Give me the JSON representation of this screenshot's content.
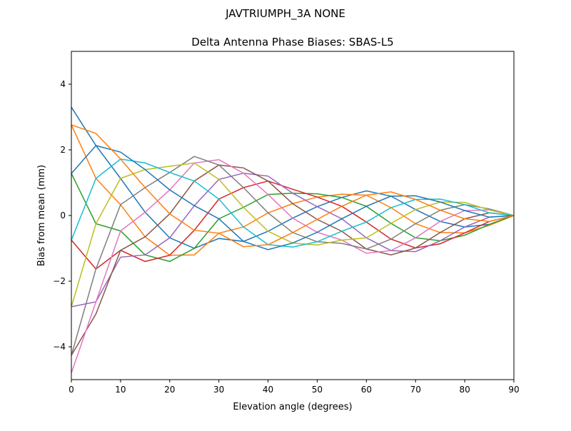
{
  "suptitle": "JAVTRIUMPH_3A   NONE",
  "chart_data": {
    "type": "line",
    "title": "Delta Antenna Phase Biases: SBAS-L5",
    "xlabel": "Elevation angle (degrees)",
    "ylabel": "Bias from mean (mm)",
    "xlim": [
      0,
      90
    ],
    "ylim": [
      -5,
      5
    ],
    "xticks": [
      "0",
      "10",
      "20",
      "30",
      "40",
      "50",
      "60",
      "70",
      "80",
      "90"
    ],
    "yticks": [
      "−4",
      "−2",
      "0",
      "2",
      "4"
    ],
    "grid": false,
    "legend": "none",
    "x": [
      0,
      5,
      10,
      15,
      20,
      25,
      30,
      35,
      40,
      45,
      50,
      55,
      60,
      65,
      70,
      75,
      80,
      85,
      90
    ],
    "colors": [
      "#1f77b4",
      "#ff7f0e",
      "#2ca02c",
      "#d62728",
      "#9467bd",
      "#8c564b",
      "#e377c2",
      "#7f7f7f",
      "#bcbd22",
      "#17becf"
    ],
    "series": [
      {
        "values": [
          3.3,
          2.13,
          1.13,
          0.1,
          -0.68,
          -1.0,
          -0.7,
          -0.79,
          -0.48,
          -0.08,
          0.27,
          0.55,
          0.75,
          0.59,
          0.18,
          -0.18,
          -0.35,
          -0.27,
          0
        ]
      },
      {
        "values": [
          2.76,
          1.13,
          0.33,
          -0.65,
          -1.21,
          -1.2,
          -0.54,
          -0.35,
          0.08,
          0.36,
          0.56,
          0.65,
          0.62,
          0.24,
          -0.25,
          -0.52,
          -0.53,
          -0.3,
          0
        ]
      },
      {
        "values": [
          1.28,
          -0.25,
          -0.47,
          -1.2,
          -1.4,
          -1.0,
          -0.1,
          0.25,
          0.64,
          0.68,
          0.66,
          0.55,
          0.28,
          -0.24,
          -0.68,
          -0.77,
          -0.6,
          -0.27,
          0
        ]
      },
      {
        "values": [
          -0.75,
          -1.63,
          -1.06,
          -1.4,
          -1.21,
          -0.45,
          0.5,
          0.85,
          1.05,
          0.8,
          0.56,
          0.28,
          -0.2,
          -0.72,
          -0.99,
          -0.86,
          -0.53,
          -0.18,
          0
        ]
      },
      {
        "values": [
          -2.78,
          -2.63,
          -1.27,
          -1.2,
          -0.68,
          0.3,
          1.1,
          1.29,
          1.2,
          0.68,
          0.27,
          -0.1,
          -0.68,
          -1.07,
          -1.1,
          -0.77,
          -0.35,
          -0.05,
          0
        ]
      },
      {
        "values": [
          -4.26,
          -3.0,
          -1.06,
          -0.65,
          0.05,
          1.05,
          1.54,
          1.45,
          1.05,
          0.36,
          -0.12,
          -0.48,
          -1.02,
          -1.2,
          -0.99,
          -0.52,
          -0.1,
          0.08,
          0
        ]
      },
      {
        "values": [
          -4.8,
          -2.63,
          -0.47,
          0.1,
          0.78,
          1.6,
          1.7,
          1.29,
          0.64,
          -0.08,
          -0.51,
          -0.75,
          -1.15,
          -1.07,
          -0.68,
          -0.18,
          0.15,
          0.17,
          0
        ]
      },
      {
        "values": [
          -4.26,
          -1.63,
          0.33,
          0.85,
          1.31,
          1.8,
          1.54,
          0.85,
          0.08,
          -0.52,
          -0.8,
          -0.85,
          -1.02,
          -0.72,
          -0.25,
          0.16,
          0.33,
          0.2,
          0
        ]
      },
      {
        "values": [
          -2.78,
          -0.25,
          1.13,
          1.4,
          1.5,
          1.6,
          1.1,
          0.25,
          -0.48,
          -0.84,
          -0.9,
          -0.75,
          -0.68,
          -0.24,
          0.18,
          0.41,
          0.4,
          0.17,
          0
        ]
      },
      {
        "values": [
          -0.75,
          1.13,
          1.72,
          1.6,
          1.31,
          1.05,
          0.5,
          -0.35,
          -0.89,
          -0.96,
          -0.8,
          -0.48,
          -0.2,
          0.24,
          0.49,
          0.5,
          0.33,
          0.08,
          0
        ]
      },
      {
        "values": [
          1.28,
          2.13,
          1.93,
          1.4,
          0.78,
          0.3,
          -0.1,
          -0.79,
          -1.04,
          -0.84,
          -0.51,
          -0.1,
          0.28,
          0.59,
          0.6,
          0.41,
          0.15,
          -0.05,
          0
        ]
      },
      {
        "values": [
          2.76,
          2.5,
          1.72,
          0.85,
          0.05,
          -0.45,
          -0.54,
          -0.95,
          -0.89,
          -0.52,
          -0.12,
          0.28,
          0.62,
          0.72,
          0.49,
          0.16,
          -0.1,
          -0.18,
          0
        ]
      }
    ]
  }
}
